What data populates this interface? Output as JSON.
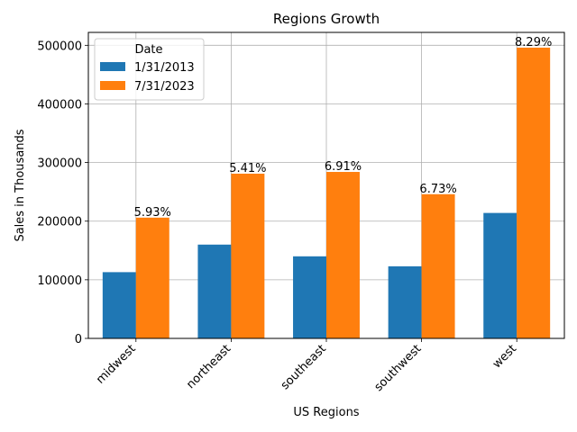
{
  "chart_data": {
    "type": "bar",
    "title": "Regions Growth",
    "xlabel": "US Regions",
    "ylabel": "Sales in Thousands",
    "categories": [
      "midwest",
      "northeast",
      "southeast",
      "southwest",
      "west"
    ],
    "series": [
      {
        "name": "1/31/2013",
        "color": "#1f77b4",
        "values": [
          113000,
          160000,
          140000,
          123000,
          214000
        ]
      },
      {
        "name": "7/31/2023",
        "color": "#ff7f0e",
        "values": [
          206000,
          281000,
          284000,
          246000,
          496000
        ]
      }
    ],
    "data_labels": [
      "5.93%",
      "5.41%",
      "6.91%",
      "6.73%",
      "8.29%"
    ],
    "yticks": [
      0,
      100000,
      200000,
      300000,
      400000,
      500000
    ],
    "ylim": [
      0,
      522000
    ],
    "grid": true,
    "legend": {
      "title": "Date",
      "position": "top-left"
    }
  }
}
